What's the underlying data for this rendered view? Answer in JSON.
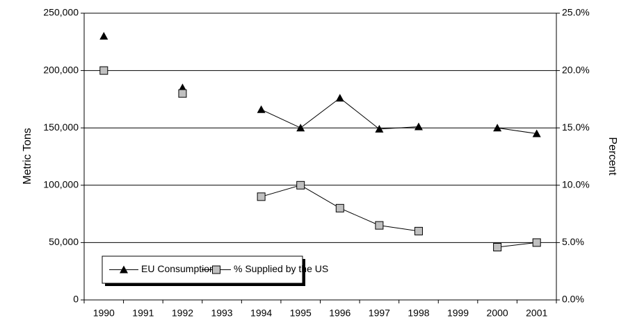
{
  "chart_data": {
    "type": "line",
    "y_label": "Metric Tons",
    "y2_label": "Percent",
    "categories": [
      "1990",
      "1991",
      "1992",
      "1993",
      "1994",
      "1995",
      "1996",
      "1997",
      "1998",
      "1999",
      "2000",
      "2001"
    ],
    "series": [
      {
        "name": "EU Consumption",
        "color": "#000000",
        "marker": "triangle",
        "values": [
          230000,
          null,
          185000,
          null,
          166000,
          150000,
          176000,
          149000,
          151000,
          null,
          150000,
          145000
        ]
      },
      {
        "name": "% Supplied by the US",
        "color": "#c0c0c0",
        "marker": "square",
        "axis": "y2",
        "values": [
          20,
          null,
          18,
          null,
          9,
          10,
          8,
          6.5,
          6,
          null,
          4.6,
          5
        ]
      }
    ],
    "ylim": [
      0,
      250000
    ],
    "yticks": [
      0,
      {
        "value": 50000,
        "label": "50,000"
      },
      {
        "value": 100000,
        "label": "100,000"
      },
      {
        "value": 150000,
        "label": "150,000"
      },
      {
        "value": 200000,
        "label": "200,000"
      },
      {
        "value": 250000,
        "label": "250,000"
      }
    ],
    "y2lim": [
      0,
      25
    ],
    "y2ticks": [
      {
        "value": 0,
        "label": "0.0%"
      },
      {
        "value": 5,
        "label": "5.0%"
      },
      {
        "value": 10,
        "label": "10.0%"
      },
      {
        "value": 15,
        "label": "15.0%"
      },
      {
        "value": 20,
        "label": "20.0%"
      },
      {
        "value": 25,
        "label": "25.0%"
      }
    ],
    "grid": true,
    "legend": "lower left"
  }
}
